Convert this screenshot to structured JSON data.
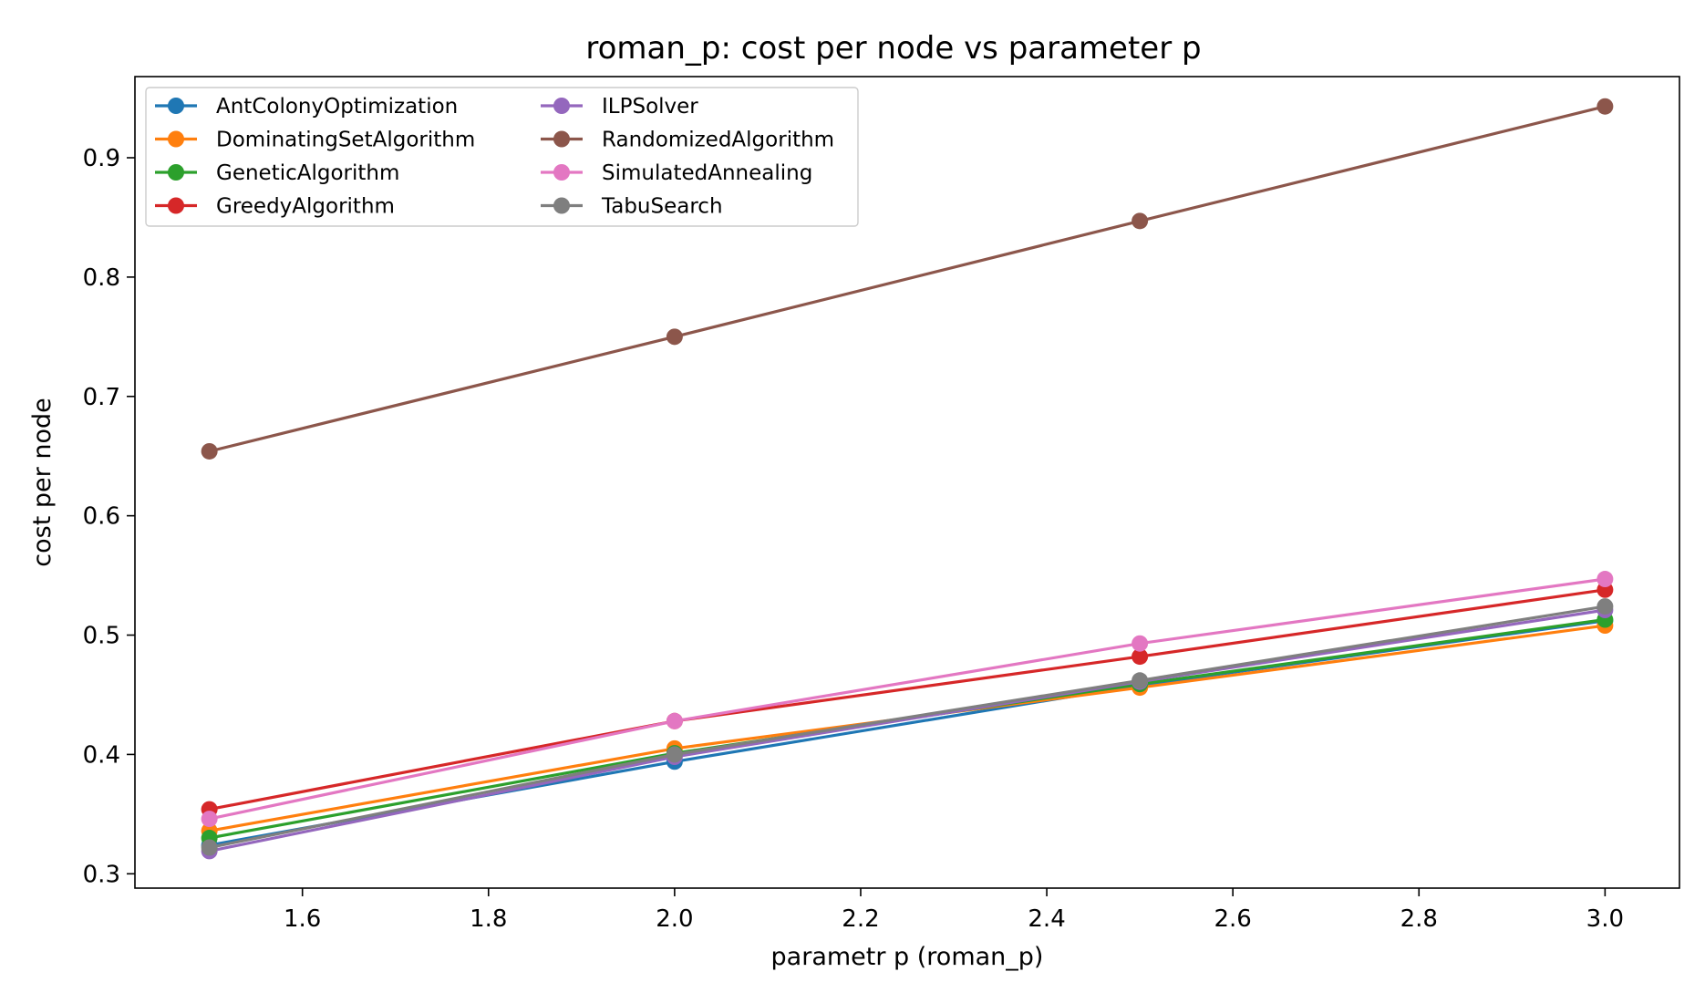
{
  "chart_data": {
    "type": "line",
    "title": "roman_p: cost per node vs parameter p",
    "xlabel": "parametr p (roman_p)",
    "ylabel": "cost per node",
    "xlim": [
      1.42,
      3.08
    ],
    "ylim": [
      0.288,
      0.968
    ],
    "xticks": [
      1.6,
      1.8,
      2.0,
      2.2,
      2.4,
      2.6,
      2.8,
      3.0
    ],
    "xtick_labels": [
      "1.6",
      "1.8",
      "2.0",
      "2.2",
      "2.4",
      "2.6",
      "2.8",
      "3.0"
    ],
    "yticks": [
      0.3,
      0.4,
      0.5,
      0.6,
      0.7,
      0.8,
      0.9
    ],
    "ytick_labels": [
      "0.3",
      "0.4",
      "0.5",
      "0.6",
      "0.7",
      "0.8",
      "0.9"
    ],
    "grid": false,
    "legend_position": "upper-left",
    "legend_columns": 2,
    "x": [
      1.5,
      2.0,
      2.5,
      3.0
    ],
    "series": [
      {
        "name": "AntColonyOptimization",
        "color": "#1f77b4",
        "values": [
          0.324,
          0.394,
          0.458,
          0.512
        ]
      },
      {
        "name": "DominatingSetAlgorithm",
        "color": "#ff7f0e",
        "values": [
          0.336,
          0.405,
          0.456,
          0.508
        ]
      },
      {
        "name": "GeneticAlgorithm",
        "color": "#2ca02c",
        "values": [
          0.33,
          0.401,
          0.459,
          0.513
        ]
      },
      {
        "name": "GreedyAlgorithm",
        "color": "#d62728",
        "values": [
          0.354,
          0.428,
          0.482,
          0.538
        ]
      },
      {
        "name": "ILPSolver",
        "color": "#9467bd",
        "values": [
          0.319,
          0.398,
          0.461,
          0.521
        ]
      },
      {
        "name": "RandomizedAlgorithm",
        "color": "#8c564b",
        "values": [
          0.654,
          0.75,
          0.847,
          0.943
        ]
      },
      {
        "name": "SimulatedAnnealing",
        "color": "#e377c2",
        "values": [
          0.346,
          0.428,
          0.493,
          0.547
        ]
      },
      {
        "name": "TabuSearch",
        "color": "#7f7f7f",
        "values": [
          0.322,
          0.4,
          0.462,
          0.524
        ]
      }
    ]
  }
}
